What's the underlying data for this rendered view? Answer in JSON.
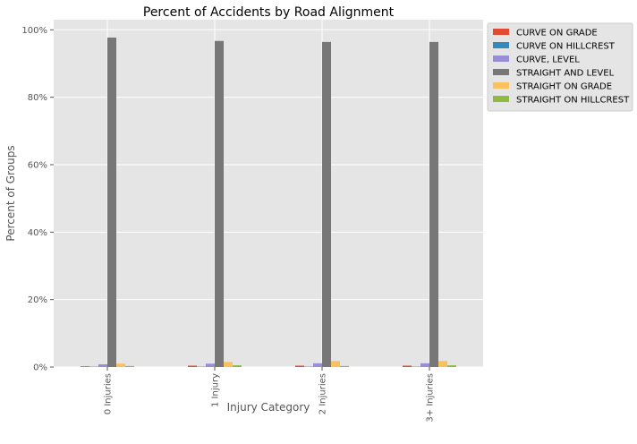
{
  "chart_data": {
    "type": "bar",
    "title": "Percent of Accidents by Road Alignment",
    "xlabel": "Injury Category",
    "ylabel": "Percent of Groups",
    "categories": [
      "0 Injuries",
      "1 Injury",
      "2 Injuries",
      "3+ Injuries"
    ],
    "ylim": [
      0,
      1.03
    ],
    "yticks": [
      0,
      0.2,
      0.4,
      0.6,
      0.8,
      1.0
    ],
    "ytick_labels": [
      "0%",
      "20%",
      "40%",
      "60%",
      "80%",
      "100%"
    ],
    "grid": true,
    "legend_position": "outside-top-right",
    "series": [
      {
        "name": "CURVE ON GRADE",
        "color": "#E24A33",
        "values": [
          0.002,
          0.004,
          0.004,
          0.004
        ]
      },
      {
        "name": "CURVE ON HILLCREST",
        "color": "#348ABD",
        "values": [
          0.001,
          0.001,
          0.001,
          0.001
        ]
      },
      {
        "name": "CURVE, LEVEL",
        "color": "#988ED5",
        "values": [
          0.008,
          0.01,
          0.011,
          0.011
        ]
      },
      {
        "name": "STRAIGHT AND LEVEL",
        "color": "#777777",
        "values": [
          0.977,
          0.967,
          0.964,
          0.964
        ]
      },
      {
        "name": "STRAIGHT ON GRADE",
        "color": "#FBC15E",
        "values": [
          0.01,
          0.015,
          0.018,
          0.018
        ]
      },
      {
        "name": "STRAIGHT ON HILLCREST",
        "color": "#8EBA42",
        "values": [
          0.003,
          0.005,
          0.003,
          0.005
        ]
      }
    ]
  }
}
